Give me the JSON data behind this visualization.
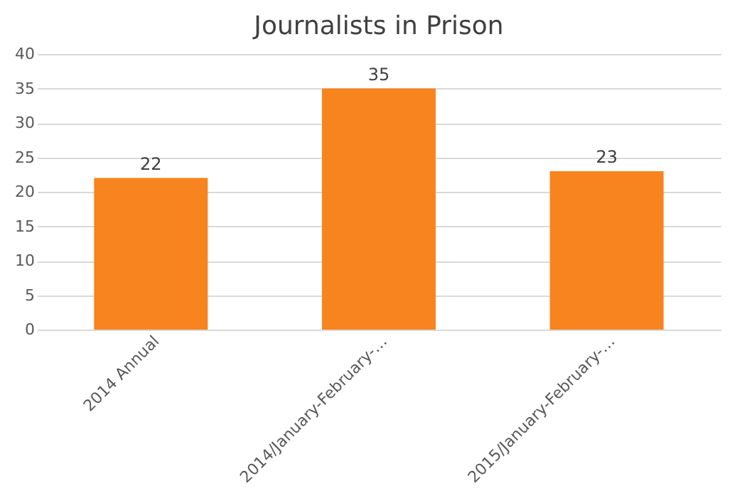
{
  "chart_data": {
    "type": "bar",
    "title": "Journalists in Prison",
    "categories": [
      "2014 Annual",
      "2014/January-February-…",
      "2015/January-February-…"
    ],
    "values": [
      22,
      35,
      23
    ],
    "color": "#f7841e",
    "ylim": [
      0,
      40
    ],
    "yticks": [
      0,
      5,
      10,
      15,
      20,
      25,
      30,
      35,
      40
    ],
    "grid": "y",
    "data_labels": true
  }
}
